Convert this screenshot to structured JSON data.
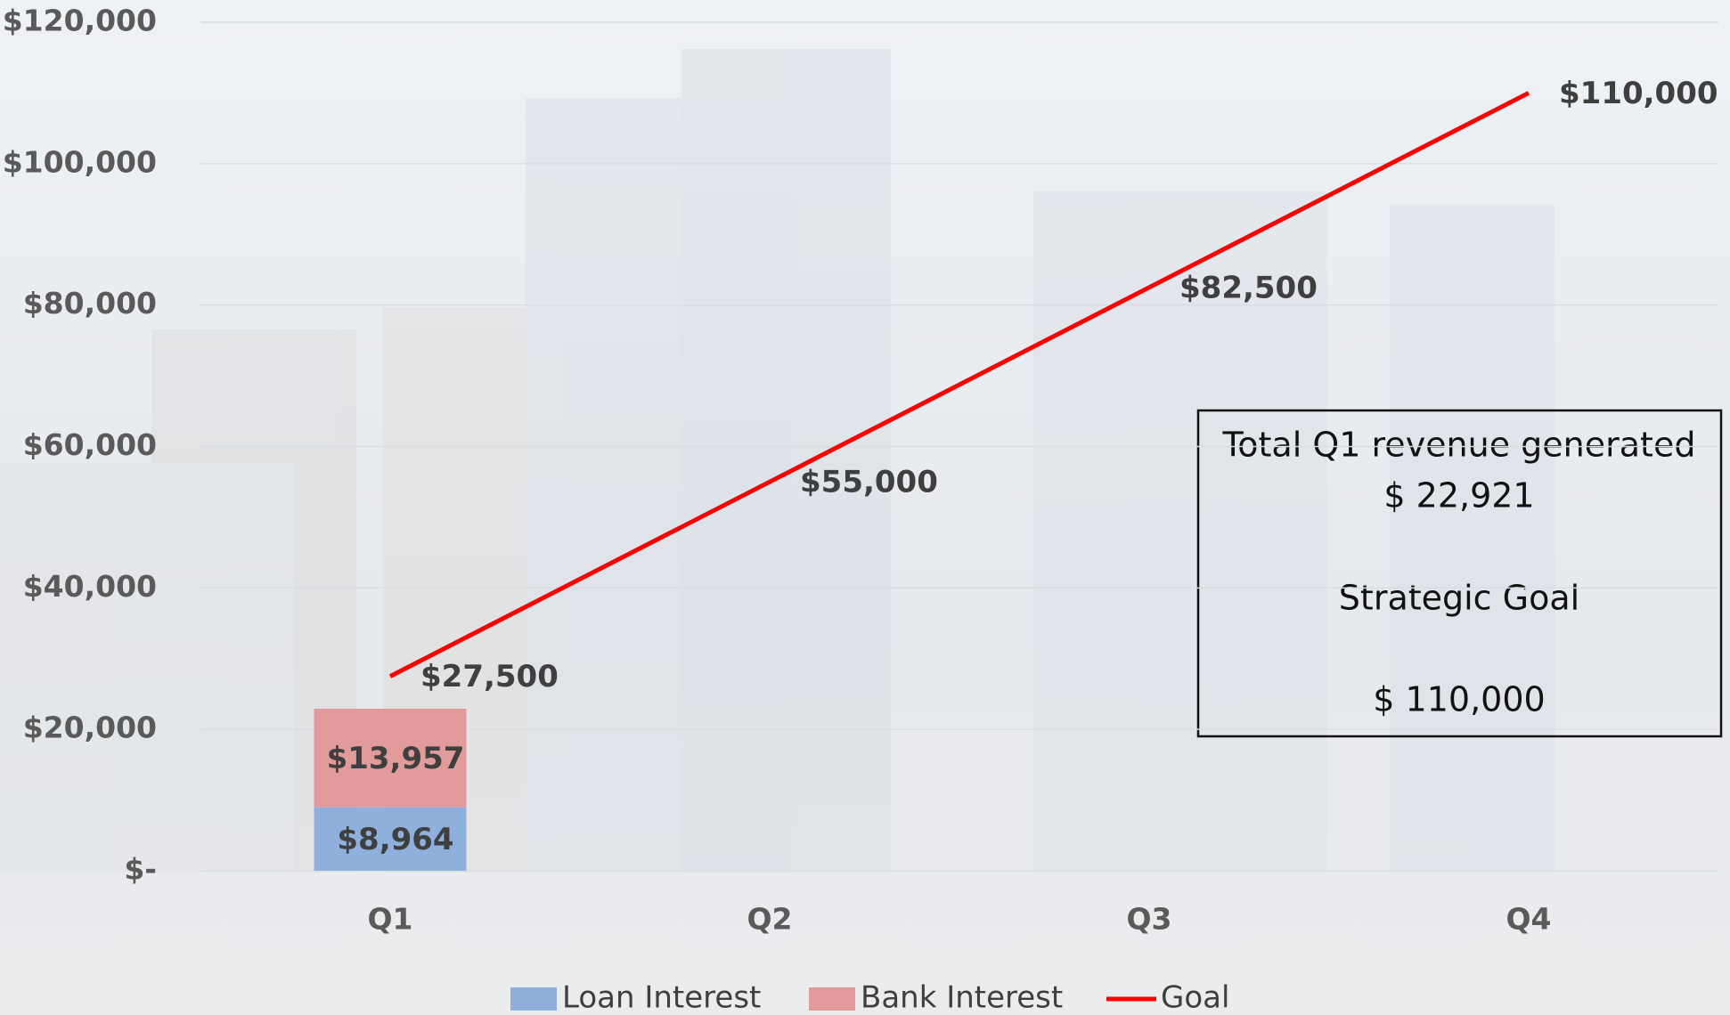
{
  "chart_data": {
    "type": "bar",
    "stacked": true,
    "categories": [
      "Q1",
      "Q2",
      "Q3",
      "Q4"
    ],
    "series": [
      {
        "name": "Loan Interest",
        "type": "bar",
        "color": "#8fb0dc",
        "values": [
          8964,
          null,
          null,
          null
        ],
        "value_labels": [
          "$8,964",
          null,
          null,
          null
        ]
      },
      {
        "name": "Bank Interest",
        "type": "bar",
        "color": "#e29b9b",
        "values": [
          13957,
          null,
          null,
          null
        ],
        "value_labels": [
          "$13,957",
          null,
          null,
          null
        ]
      },
      {
        "name": "Goal",
        "type": "line",
        "color": "#ff0000",
        "values": [
          27500,
          55000,
          82500,
          110000
        ],
        "value_labels": [
          "$27,500",
          "$55,000",
          "$82,500",
          "$110,000"
        ]
      }
    ],
    "ylim": [
      0,
      120000
    ],
    "yticks": [
      {
        "value": 0,
        "label": "$-"
      },
      {
        "value": 20000,
        "label": "$20,000"
      },
      {
        "value": 40000,
        "label": "$40,000"
      },
      {
        "value": 60000,
        "label": "$60,000"
      },
      {
        "value": 80000,
        "label": "$80,000"
      },
      {
        "value": 100000,
        "label": "$100,000"
      },
      {
        "value": 120000,
        "label": "$120,000"
      }
    ],
    "grid": true,
    "legend": "bottom",
    "annotations": [
      "Total Q1 revenue generated",
      "$ 22,921",
      "Strategic Goal",
      "$ 110,000"
    ]
  }
}
